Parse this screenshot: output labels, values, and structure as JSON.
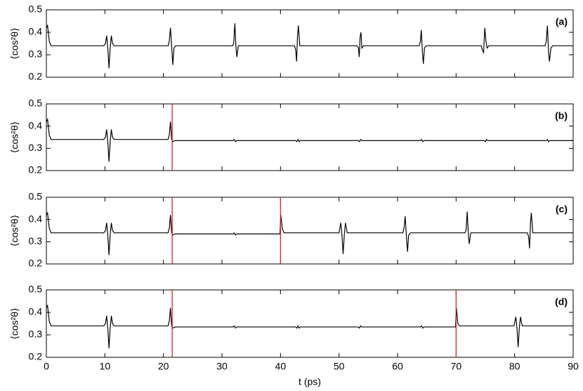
{
  "chart_data": [
    {
      "type": "line",
      "label": "(a)",
      "ylabel": "⟨cos²θ⟩",
      "color": "#000000",
      "xlim": [
        0,
        90
      ],
      "ylim": [
        0.2,
        0.5
      ],
      "yticks": [
        0.2,
        0.3,
        0.4,
        0.5
      ],
      "x": [
        0,
        0.2,
        0.5,
        0.8,
        9.8,
        10.1,
        10.3,
        10.5,
        10.7,
        10.9,
        11.1,
        11.3,
        11.6,
        20.8,
        21.0,
        21.2,
        21.4,
        21.6,
        21.8,
        22.1,
        31.8,
        32.0,
        32.2,
        32.4,
        32.55,
        32.8,
        42.4,
        42.6,
        42.75,
        42.9,
        43.05,
        43.3,
        53.1,
        53.3,
        53.45,
        53.6,
        53.75,
        53.9,
        54.2,
        63.7,
        63.9,
        64.05,
        64.25,
        64.4,
        64.6,
        64.9,
        74.3,
        74.5,
        74.7,
        74.9,
        75.1,
        75.3,
        75.6,
        85.2,
        85.4,
        85.6,
        85.8,
        85.95,
        86.2,
        86.5,
        90
      ],
      "values": [
        0.42,
        0.43,
        0.36,
        0.34,
        0.34,
        0.35,
        0.385,
        0.33,
        0.24,
        0.33,
        0.385,
        0.35,
        0.34,
        0.34,
        0.36,
        0.42,
        0.34,
        0.255,
        0.33,
        0.34,
        0.34,
        0.35,
        0.44,
        0.33,
        0.29,
        0.34,
        0.34,
        0.32,
        0.27,
        0.38,
        0.43,
        0.34,
        0.34,
        0.33,
        0.29,
        0.38,
        0.4,
        0.33,
        0.34,
        0.34,
        0.36,
        0.41,
        0.31,
        0.26,
        0.33,
        0.34,
        0.34,
        0.32,
        0.31,
        0.42,
        0.36,
        0.33,
        0.34,
        0.34,
        0.36,
        0.43,
        0.31,
        0.27,
        0.33,
        0.34,
        0.34
      ]
    },
    {
      "type": "line",
      "label": "(b)",
      "ylabel": "⟨cos²θ⟩",
      "color": "#000000",
      "xlim": [
        0,
        90
      ],
      "ylim": [
        0.2,
        0.5
      ],
      "yticks": [
        0.2,
        0.3,
        0.4,
        0.5
      ],
      "vlines": [
        21.5
      ],
      "vline_color": "#e02020",
      "x": [
        0,
        0.2,
        0.5,
        0.8,
        9.8,
        10.1,
        10.3,
        10.5,
        10.7,
        10.9,
        11.1,
        11.3,
        11.6,
        20.8,
        21.0,
        21.2,
        21.4,
        21.6,
        22.0,
        31.9,
        32.1,
        32.3,
        32.5,
        42.6,
        42.8,
        43.0,
        43.2,
        43.4,
        53.3,
        53.5,
        53.7,
        53.9,
        63.9,
        64.1,
        64.3,
        64.5,
        74.8,
        75.0,
        75.2,
        75.4,
        85.4,
        85.6,
        85.8,
        86.0,
        90
      ],
      "values": [
        0.42,
        0.43,
        0.36,
        0.34,
        0.34,
        0.35,
        0.385,
        0.33,
        0.24,
        0.33,
        0.385,
        0.35,
        0.34,
        0.34,
        0.36,
        0.42,
        0.34,
        0.33,
        0.335,
        0.335,
        0.34,
        0.33,
        0.335,
        0.335,
        0.33,
        0.34,
        0.33,
        0.335,
        0.335,
        0.33,
        0.34,
        0.335,
        0.335,
        0.34,
        0.33,
        0.335,
        0.335,
        0.33,
        0.34,
        0.335,
        0.335,
        0.34,
        0.33,
        0.335,
        0.335
      ]
    },
    {
      "type": "line",
      "label": "(c)",
      "ylabel": "⟨cos²θ⟩",
      "color": "#000000",
      "xlim": [
        0,
        90
      ],
      "ylim": [
        0.2,
        0.5
      ],
      "yticks": [
        0.2,
        0.3,
        0.4,
        0.5
      ],
      "vlines": [
        21.5,
        40
      ],
      "vline_color": "#e02020",
      "x": [
        0,
        0.2,
        0.5,
        0.8,
        9.8,
        10.1,
        10.3,
        10.5,
        10.7,
        10.9,
        11.1,
        11.3,
        11.6,
        20.8,
        21.0,
        21.2,
        21.4,
        21.6,
        22.0,
        31.9,
        32.1,
        32.3,
        32.5,
        39.9,
        40.05,
        40.3,
        40.6,
        50.0,
        50.3,
        50.5,
        50.7,
        50.9,
        51.1,
        51.4,
        60.9,
        61.1,
        61.3,
        61.5,
        61.7,
        61.9,
        62.2,
        71.5,
        71.7,
        71.9,
        72.1,
        72.25,
        72.5,
        82.2,
        82.4,
        82.55,
        82.7,
        82.85,
        83.1,
        90
      ],
      "values": [
        0.42,
        0.43,
        0.36,
        0.34,
        0.34,
        0.35,
        0.385,
        0.33,
        0.24,
        0.33,
        0.385,
        0.35,
        0.34,
        0.34,
        0.36,
        0.42,
        0.34,
        0.33,
        0.335,
        0.335,
        0.34,
        0.33,
        0.335,
        0.335,
        0.42,
        0.36,
        0.34,
        0.34,
        0.385,
        0.33,
        0.245,
        0.33,
        0.385,
        0.34,
        0.34,
        0.36,
        0.415,
        0.33,
        0.255,
        0.33,
        0.34,
        0.34,
        0.35,
        0.435,
        0.33,
        0.29,
        0.34,
        0.34,
        0.32,
        0.27,
        0.38,
        0.43,
        0.34,
        0.34
      ]
    },
    {
      "type": "line",
      "label": "(d)",
      "ylabel": "⟨cos²θ⟩",
      "xlabel": "t (ps)",
      "color": "#000000",
      "xlim": [
        0,
        90
      ],
      "ylim": [
        0.2,
        0.5
      ],
      "yticks": [
        0.2,
        0.3,
        0.4,
        0.5
      ],
      "xticks": [
        0,
        10,
        20,
        30,
        40,
        50,
        60,
        70,
        80,
        90
      ],
      "vlines": [
        21.5,
        70
      ],
      "vline_color": "#e02020",
      "x": [
        0,
        0.2,
        0.5,
        0.8,
        9.8,
        10.1,
        10.3,
        10.5,
        10.7,
        10.9,
        11.1,
        11.3,
        11.6,
        20.8,
        21.0,
        21.2,
        21.4,
        21.6,
        22.0,
        31.9,
        32.1,
        32.3,
        32.5,
        42.6,
        42.8,
        43.0,
        43.2,
        43.4,
        53.3,
        53.5,
        53.7,
        53.9,
        63.9,
        64.1,
        64.3,
        64.5,
        69.9,
        70.05,
        70.3,
        70.6,
        79.9,
        80.2,
        80.4,
        80.6,
        80.8,
        81.0,
        81.3,
        90
      ],
      "values": [
        0.42,
        0.43,
        0.36,
        0.34,
        0.34,
        0.35,
        0.385,
        0.33,
        0.24,
        0.33,
        0.385,
        0.35,
        0.34,
        0.34,
        0.36,
        0.42,
        0.34,
        0.33,
        0.335,
        0.335,
        0.34,
        0.33,
        0.335,
        0.335,
        0.33,
        0.34,
        0.33,
        0.335,
        0.335,
        0.33,
        0.34,
        0.335,
        0.335,
        0.34,
        0.33,
        0.335,
        0.335,
        0.42,
        0.35,
        0.34,
        0.34,
        0.38,
        0.33,
        0.245,
        0.33,
        0.38,
        0.34,
        0.34
      ]
    }
  ]
}
